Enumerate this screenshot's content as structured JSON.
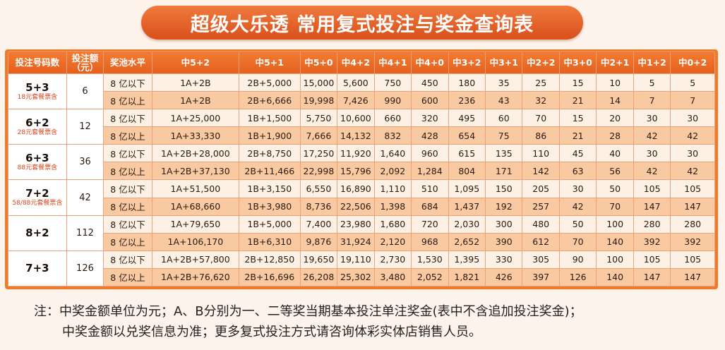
{
  "title": "超级大乐透 常用复式投注与奖金查询表",
  "headers": [
    "投注号码数",
    "投注额（元）",
    "奖池水平",
    "中5+2",
    "中5+1",
    "中5+0",
    "中4+2",
    "中4+1",
    "中4+0",
    "中3+2",
    "中3+1",
    "中2+2",
    "中3+0",
    "中2+1",
    "中1+2",
    "中0+2"
  ],
  "groups": [
    {
      "combo": "5+3",
      "package": "18元套餐票含",
      "amount": "6",
      "rows": [
        {
          "level": "8 亿以下",
          "values": [
            "1A+2B",
            "2B+5,000",
            "15,000",
            "5,600",
            "750",
            "450",
            "180",
            "35",
            "25",
            "15",
            "10",
            "5",
            "5"
          ]
        },
        {
          "level": "8 亿以上",
          "values": [
            "1A+2B",
            "2B+6,666",
            "19,998",
            "7,426",
            "990",
            "600",
            "236",
            "43",
            "32",
            "21",
            "14",
            "7",
            "7"
          ]
        }
      ]
    },
    {
      "combo": "6+2",
      "package": "28元套餐票含",
      "amount": "12",
      "rows": [
        {
          "level": "8 亿以下",
          "values": [
            "1A+25,000",
            "1B+1,500",
            "5,750",
            "10,600",
            "660",
            "320",
            "495",
            "60",
            "70",
            "15",
            "20",
            "30",
            "30"
          ]
        },
        {
          "level": "8 亿以上",
          "values": [
            "1A+33,330",
            "1B+1,900",
            "7,666",
            "14,132",
            "832",
            "428",
            "654",
            "75",
            "86",
            "21",
            "28",
            "42",
            "42"
          ]
        }
      ]
    },
    {
      "combo": "6+3",
      "package": "88元套餐票含",
      "amount": "36",
      "rows": [
        {
          "level": "8 亿以下",
          "values": [
            "1A+2B+28,000",
            "2B+8,750",
            "17,250",
            "11,920",
            "1,640",
            "960",
            "615",
            "135",
            "110",
            "45",
            "40",
            "30",
            "30"
          ]
        },
        {
          "level": "8 亿以上",
          "values": [
            "1A+2B+37,130",
            "2B+11,466",
            "22,998",
            "15,796",
            "2,092",
            "1,284",
            "804",
            "171",
            "142",
            "63",
            "56",
            "42",
            "42"
          ]
        }
      ]
    },
    {
      "combo": "7+2",
      "package": "58/88元套餐票含",
      "amount": "42",
      "rows": [
        {
          "level": "8 亿以下",
          "values": [
            "1A+51,500",
            "1B+3,150",
            "6,550",
            "16,890",
            "1,110",
            "510",
            "1,095",
            "150",
            "205",
            "30",
            "50",
            "105",
            "105"
          ]
        },
        {
          "level": "8 亿以上",
          "values": [
            "1A+68,660",
            "1B+3,980",
            "8,736",
            "22,506",
            "1,398",
            "684",
            "1,437",
            "192",
            "257",
            "42",
            "70",
            "147",
            "147"
          ]
        }
      ]
    },
    {
      "combo": "8+2",
      "package": "",
      "amount": "112",
      "rows": [
        {
          "level": "8 亿以下",
          "values": [
            "1A+79,650",
            "1B+5,000",
            "7,400",
            "23,980",
            "1,680",
            "720",
            "2,030",
            "300",
            "480",
            "50",
            "100",
            "280",
            "280"
          ]
        },
        {
          "level": "8 亿以上",
          "values": [
            "1A+106,170",
            "1B+6,310",
            "9,876",
            "31,924",
            "2,120",
            "968",
            "2,652",
            "390",
            "612",
            "70",
            "140",
            "392",
            "392"
          ]
        }
      ]
    },
    {
      "combo": "7+3",
      "package": "",
      "amount": "126",
      "rows": [
        {
          "level": "8 亿以下",
          "values": [
            "1A+2B+57,800",
            "2B+12,850",
            "19,650",
            "19,110",
            "2,730",
            "1,530",
            "1,395",
            "330",
            "305",
            "90",
            "100",
            "105",
            "105"
          ]
        },
        {
          "level": "8 亿以上",
          "values": [
            "1A+2B+76,620",
            "2B+16,696",
            "26,208",
            "25,302",
            "3,480",
            "2,052",
            "1,821",
            "426",
            "397",
            "126",
            "140",
            "147",
            "147"
          ]
        }
      ]
    }
  ],
  "note": {
    "line1": "注：中奖金额单位为元；A、B分别为一、二等奖当期基本投注单注奖金(表中不含追加投注奖金)；",
    "line2": "中奖金额以兑奖信息为准；更多复式投注方式请咨询体彩实体店销售人员。"
  }
}
